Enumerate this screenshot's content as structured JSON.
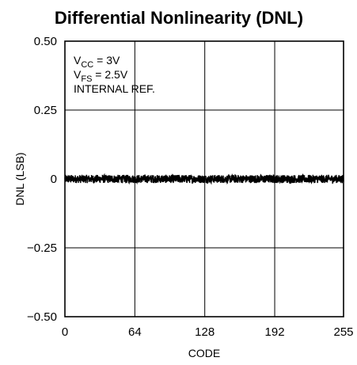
{
  "chart_data": {
    "type": "line",
    "title": "Differential Nonlinearity (DNL)",
    "xlabel": "CODE",
    "ylabel": "DNL (LSB)",
    "xlim": [
      0,
      255
    ],
    "ylim": [
      -0.5,
      0.5
    ],
    "x_ticks": [
      0,
      64,
      128,
      192,
      255
    ],
    "y_ticks": [
      0.5,
      0.25,
      0,
      -0.25,
      -0.5
    ],
    "x_tick_labels": [
      "0",
      "64",
      "128",
      "192",
      "255"
    ],
    "y_tick_labels": [
      "0.50",
      "0.25",
      "0",
      "−0.25",
      "−0.50"
    ],
    "grid": true,
    "series": [
      {
        "x_start": 0,
        "x_end": 255,
        "x_step": 1,
        "approx_min": -0.015,
        "approx_max": 0.015,
        "color": "#000000"
      }
    ],
    "annotations": {
      "line1": {
        "main": "V",
        "sub": "CC",
        "rest": " = 3V"
      },
      "line2": {
        "main": "V",
        "sub": "FS",
        "rest": " = 2.5V"
      },
      "line3": "INTERNAL REF."
    }
  }
}
